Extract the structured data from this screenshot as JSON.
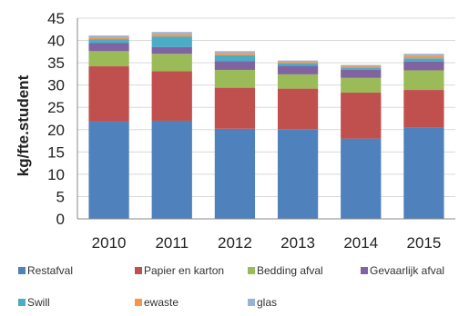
{
  "chart_data": {
    "type": "bar",
    "stacked": true,
    "ylabel": "kg/fte.student",
    "xlabel": "",
    "title": "",
    "ylim": [
      0,
      45
    ],
    "yticks": [
      0,
      5,
      10,
      15,
      20,
      25,
      30,
      35,
      40,
      45
    ],
    "grid": true,
    "legend_position": "bottom",
    "categories": [
      "2010",
      "2011",
      "2012",
      "2013",
      "2014",
      "2015"
    ],
    "series": [
      {
        "name": "Restafval",
        "color": "#4f81bd",
        "values": [
          21.8,
          22.0,
          20.2,
          20.1,
          18.0,
          20.4
        ]
      },
      {
        "name": "Papier en karton",
        "color": "#c0504d",
        "values": [
          12.4,
          11.1,
          9.2,
          9.1,
          10.3,
          8.5
        ]
      },
      {
        "name": "Bedding afval",
        "color": "#9bbb59",
        "values": [
          3.4,
          3.9,
          4.0,
          3.2,
          3.3,
          4.4
        ]
      },
      {
        "name": "Gevaarlijk afval",
        "color": "#8064a2",
        "values": [
          1.8,
          1.5,
          2.0,
          1.9,
          1.8,
          2.0
        ]
      },
      {
        "name": "Swill",
        "color": "#4bacc6",
        "values": [
          0.9,
          2.4,
          1.3,
          0.6,
          0.4,
          0.7
        ]
      },
      {
        "name": "ewaste",
        "color": "#f79646",
        "values": [
          0.4,
          0.5,
          0.5,
          0.3,
          0.4,
          0.6
        ]
      },
      {
        "name": "glas",
        "color": "#95b3d7",
        "values": [
          0.4,
          0.5,
          0.4,
          0.3,
          0.3,
          0.4
        ]
      }
    ]
  }
}
